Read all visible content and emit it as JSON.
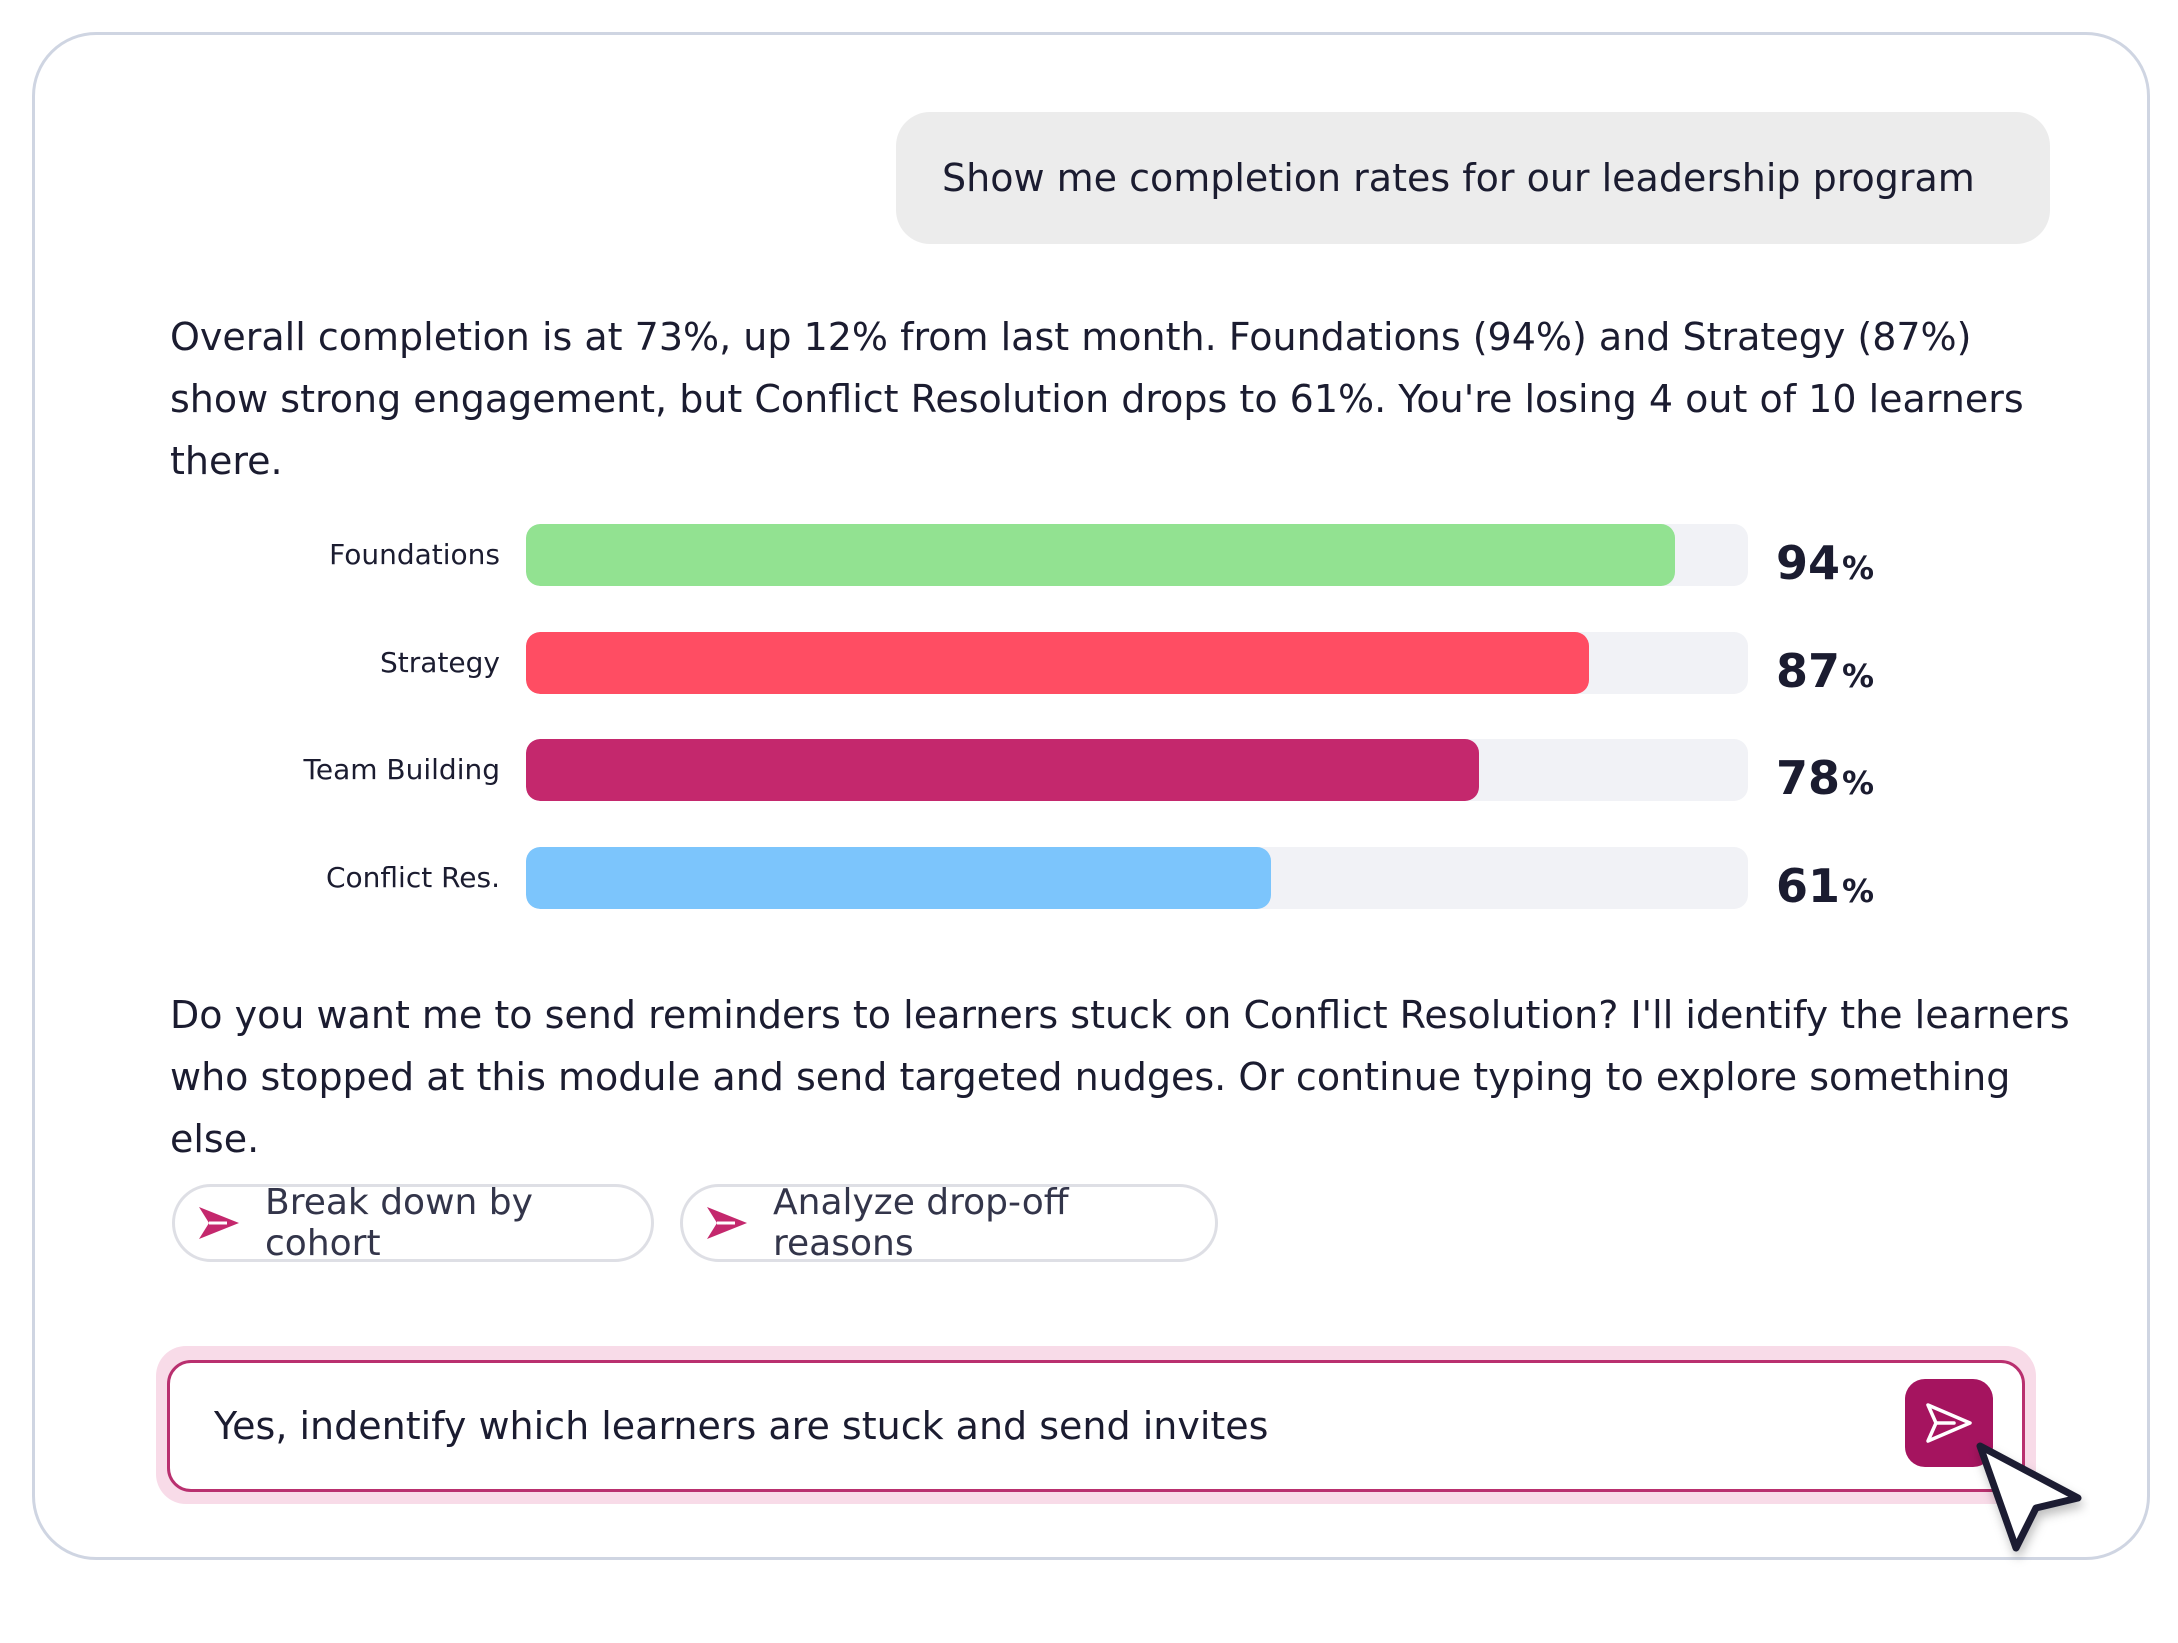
{
  "conversation": {
    "user_prompt": "Show me completion rates for our leadership program",
    "reply_intro": "Overall completion is at 73%, up 12% from last month. Foundations (94%) and Strategy (87%) show strong engagement, but Conflict Resolution drops to 61%. You're losing 4 out of 10 learners there.",
    "reply_followup": "Do you want me to send reminders to learners stuck on Conflict Resolution? I'll identify the learners who stopped at this module and send targeted nudges. Or continue typing to explore something else."
  },
  "chart_data": {
    "type": "bar",
    "orientation": "horizontal",
    "categories": [
      "Foundations",
      "Strategy",
      "Team Building",
      "Conflict Res."
    ],
    "values": [
      94,
      87,
      78,
      61
    ],
    "value_suffix": "%",
    "xlim": [
      0,
      100
    ],
    "colors": [
      "#92e291",
      "#ff4d63",
      "#c4286d",
      "#7cc5fc"
    ],
    "track_color": "#f1f2f6",
    "title": "",
    "xlabel": "",
    "ylabel": ""
  },
  "suggestions": [
    {
      "label": "Break down by cohort",
      "icon": "arrow-send-icon"
    },
    {
      "label": "Analyze drop-off reasons",
      "icon": "arrow-send-icon"
    }
  ],
  "composer": {
    "value": "Yes, indentify which learners are stuck and send invites",
    "send_icon": "send-icon",
    "accent_color": "#a5145f"
  }
}
